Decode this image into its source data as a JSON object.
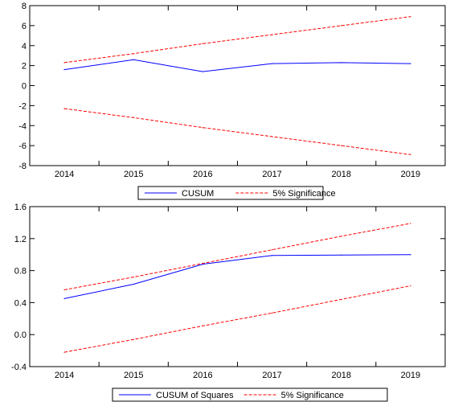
{
  "chart_data": [
    {
      "type": "line",
      "title": "",
      "xlabel": "",
      "ylabel": "",
      "x": [
        "2014",
        "2015",
        "2016",
        "2017",
        "2018",
        "2019"
      ],
      "ylim": [
        -8,
        8
      ],
      "yticks": [
        "8",
        "6",
        "4",
        "2",
        "0",
        "-2",
        "-4",
        "-6",
        "-8"
      ],
      "grid": false,
      "legend": "below",
      "series": [
        {
          "name": "CUSUM",
          "color": "#0000ff",
          "style": "solid",
          "values": [
            1.6,
            2.6,
            1.4,
            2.2,
            2.3,
            2.2
          ]
        },
        {
          "name": "5% Significance",
          "color": "#ff0000",
          "style": "dashed",
          "values": [
            2.3,
            3.2,
            4.2,
            5.1,
            6.0,
            6.9
          ]
        },
        {
          "name": "",
          "color": "#ff0000",
          "style": "dashed",
          "values": [
            -2.3,
            -3.2,
            -4.2,
            -5.1,
            -6.0,
            -6.9
          ]
        }
      ]
    },
    {
      "type": "line",
      "title": "",
      "xlabel": "",
      "ylabel": "",
      "x": [
        "2014",
        "2015",
        "2016",
        "2017",
        "2018",
        "2019"
      ],
      "ylim": [
        -0.4,
        1.6
      ],
      "yticks": [
        "1.6",
        "1.2",
        "0.8",
        "0.4",
        "0.0",
        "-0.4"
      ],
      "grid": false,
      "legend": "below",
      "series": [
        {
          "name": "CUSUM of Squares",
          "color": "#0000ff",
          "style": "solid",
          "values": [
            0.45,
            0.63,
            0.88,
            0.99,
            0.995,
            1.0
          ]
        },
        {
          "name": "5% Significance",
          "color": "#ff0000",
          "style": "dashed",
          "values": [
            0.56,
            0.72,
            0.89,
            1.06,
            1.23,
            1.39
          ]
        },
        {
          "name": "",
          "color": "#ff0000",
          "style": "dashed",
          "values": [
            -0.22,
            -0.06,
            0.11,
            0.27,
            0.44,
            0.61
          ]
        }
      ]
    }
  ]
}
